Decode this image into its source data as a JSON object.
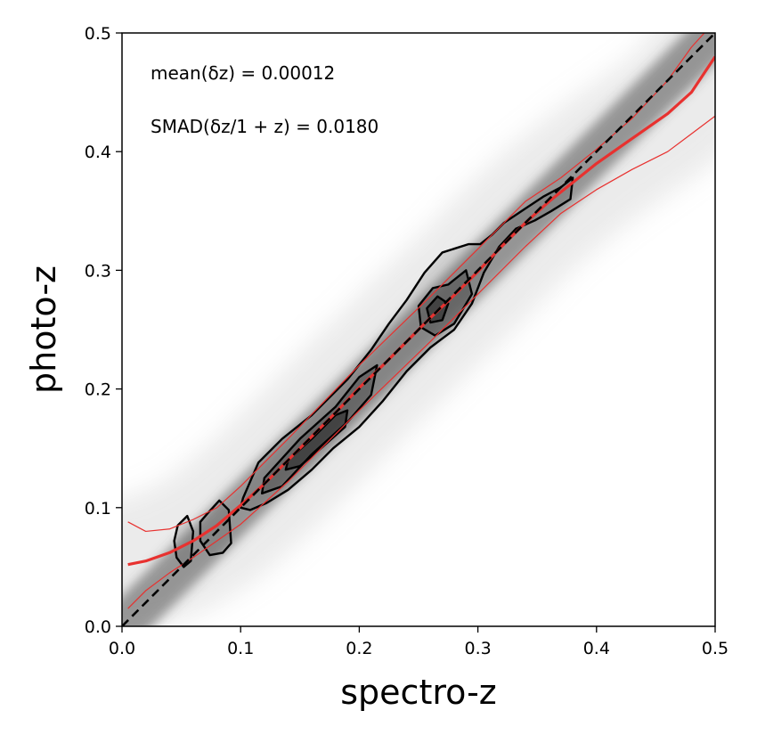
{
  "chart_data": {
    "type": "scatter",
    "xlabel": "spectro-z",
    "ylabel": "photo-z",
    "xlim": [
      0.0,
      0.5
    ],
    "ylim": [
      0.0,
      0.5
    ],
    "xticks": [
      "0.0",
      "0.1",
      "0.2",
      "0.3",
      "0.4",
      "0.5"
    ],
    "yticks": [
      "0.0",
      "0.1",
      "0.2",
      "0.3",
      "0.4",
      "0.5"
    ],
    "grid": false,
    "annotations": [
      {
        "text": "mean(δz) = 0.00012"
      },
      {
        "text": "SMAD(δz/1 + z) = 0.0180"
      }
    ],
    "reference_line": {
      "name": "",
      "style": "dashed",
      "color": "#000000",
      "points": [
        [
          0.0,
          0.0
        ],
        [
          0.5,
          0.5
        ]
      ]
    },
    "series": [
      {
        "role": "median",
        "color": "#e8312f",
        "x": [
          0.005,
          0.02,
          0.04,
          0.06,
          0.08,
          0.1,
          0.12,
          0.14,
          0.16,
          0.18,
          0.2,
          0.22,
          0.24,
          0.26,
          0.28,
          0.3,
          0.32,
          0.34,
          0.36,
          0.38,
          0.4,
          0.42,
          0.44,
          0.46,
          0.48,
          0.5
        ],
        "y": [
          0.052,
          0.055,
          0.062,
          0.072,
          0.085,
          0.102,
          0.12,
          0.14,
          0.16,
          0.18,
          0.201,
          0.22,
          0.24,
          0.26,
          0.279,
          0.299,
          0.32,
          0.34,
          0.358,
          0.374,
          0.39,
          0.404,
          0.418,
          0.432,
          0.45,
          0.48
        ]
      },
      {
        "role": "upper-envelope",
        "color": "#e8312f",
        "x": [
          0.005,
          0.02,
          0.04,
          0.06,
          0.08,
          0.1,
          0.14,
          0.2,
          0.26,
          0.3,
          0.34,
          0.37,
          0.4,
          0.43,
          0.46,
          0.48,
          0.5
        ],
        "y": [
          0.088,
          0.08,
          0.082,
          0.09,
          0.1,
          0.118,
          0.158,
          0.22,
          0.278,
          0.318,
          0.358,
          0.378,
          0.402,
          0.428,
          0.46,
          0.488,
          0.51
        ]
      },
      {
        "role": "lower-envelope",
        "color": "#e8312f",
        "x": [
          0.005,
          0.02,
          0.04,
          0.06,
          0.08,
          0.1,
          0.14,
          0.2,
          0.26,
          0.3,
          0.34,
          0.37,
          0.4,
          0.43,
          0.46,
          0.48,
          0.5
        ],
        "y": [
          0.015,
          0.03,
          0.045,
          0.058,
          0.072,
          0.086,
          0.122,
          0.182,
          0.24,
          0.28,
          0.32,
          0.348,
          0.368,
          0.385,
          0.4,
          0.415,
          0.43
        ]
      }
    ],
    "density_contours": [
      {
        "level": "outer",
        "points": [
          [
            0.102,
            0.108
          ],
          [
            0.115,
            0.138
          ],
          [
            0.135,
            0.158
          ],
          [
            0.16,
            0.178
          ],
          [
            0.19,
            0.208
          ],
          [
            0.21,
            0.233
          ],
          [
            0.225,
            0.255
          ],
          [
            0.24,
            0.275
          ],
          [
            0.255,
            0.298
          ],
          [
            0.27,
            0.315
          ],
          [
            0.292,
            0.322
          ],
          [
            0.302,
            0.322
          ],
          [
            0.312,
            0.33
          ],
          [
            0.322,
            0.34
          ],
          [
            0.34,
            0.352
          ],
          [
            0.355,
            0.362
          ],
          [
            0.37,
            0.37
          ],
          [
            0.38,
            0.378
          ],
          [
            0.378,
            0.36
          ],
          [
            0.362,
            0.35
          ],
          [
            0.348,
            0.342
          ],
          [
            0.332,
            0.335
          ],
          [
            0.318,
            0.32
          ],
          [
            0.305,
            0.298
          ],
          [
            0.295,
            0.272
          ],
          [
            0.28,
            0.25
          ],
          [
            0.26,
            0.235
          ],
          [
            0.24,
            0.215
          ],
          [
            0.22,
            0.19
          ],
          [
            0.2,
            0.168
          ],
          [
            0.178,
            0.15
          ],
          [
            0.16,
            0.132
          ],
          [
            0.14,
            0.115
          ],
          [
            0.122,
            0.104
          ],
          [
            0.108,
            0.098
          ],
          [
            0.1,
            0.1
          ]
        ]
      },
      {
        "level": "outer-left",
        "points": [
          [
            0.072,
            0.095
          ],
          [
            0.082,
            0.106
          ],
          [
            0.09,
            0.098
          ],
          [
            0.092,
            0.07
          ],
          [
            0.085,
            0.062
          ],
          [
            0.074,
            0.06
          ],
          [
            0.066,
            0.072
          ],
          [
            0.066,
            0.088
          ]
        ]
      },
      {
        "level": "outer-left-2",
        "points": [
          [
            0.047,
            0.085
          ],
          [
            0.055,
            0.093
          ],
          [
            0.06,
            0.08
          ],
          [
            0.058,
            0.055
          ],
          [
            0.052,
            0.05
          ],
          [
            0.046,
            0.058
          ],
          [
            0.044,
            0.072
          ]
        ]
      },
      {
        "level": "middle",
        "points": [
          [
            0.12,
            0.125
          ],
          [
            0.15,
            0.158
          ],
          [
            0.18,
            0.185
          ],
          [
            0.2,
            0.21
          ],
          [
            0.215,
            0.22
          ],
          [
            0.21,
            0.195
          ],
          [
            0.19,
            0.172
          ],
          [
            0.16,
            0.145
          ],
          [
            0.135,
            0.118
          ],
          [
            0.118,
            0.112
          ]
        ]
      },
      {
        "level": "middle-upper",
        "points": [
          [
            0.25,
            0.27
          ],
          [
            0.262,
            0.285
          ],
          [
            0.275,
            0.288
          ],
          [
            0.29,
            0.3
          ],
          [
            0.295,
            0.28
          ],
          [
            0.28,
            0.255
          ],
          [
            0.264,
            0.245
          ],
          [
            0.252,
            0.252
          ]
        ]
      },
      {
        "level": "inner",
        "points": [
          [
            0.14,
            0.14
          ],
          [
            0.16,
            0.158
          ],
          [
            0.18,
            0.178
          ],
          [
            0.19,
            0.182
          ],
          [
            0.188,
            0.168
          ],
          [
            0.17,
            0.152
          ],
          [
            0.15,
            0.135
          ],
          [
            0.138,
            0.132
          ]
        ]
      },
      {
        "level": "inner-upper",
        "points": [
          [
            0.257,
            0.268
          ],
          [
            0.266,
            0.278
          ],
          [
            0.275,
            0.272
          ],
          [
            0.27,
            0.258
          ],
          [
            0.26,
            0.256
          ]
        ]
      }
    ]
  }
}
